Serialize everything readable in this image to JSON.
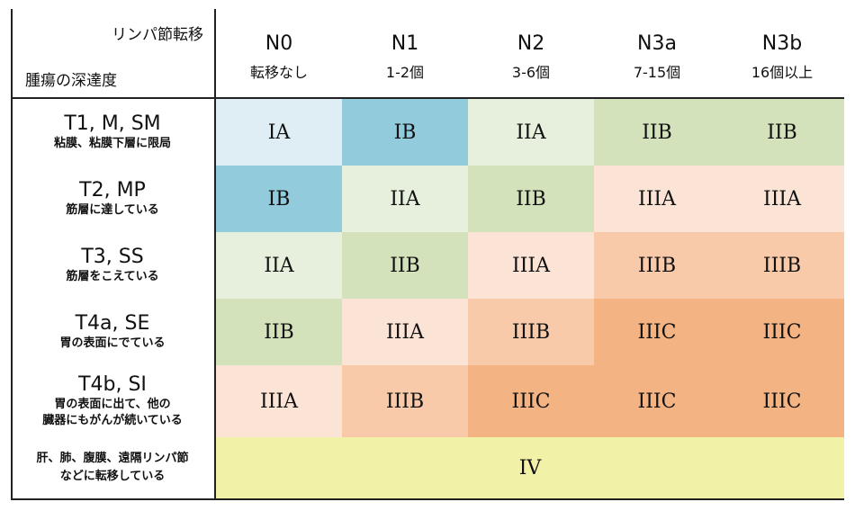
{
  "corner": {
    "lymph_label": "リンパ節転移",
    "depth_label": "腫瘍の深達度"
  },
  "columns": [
    {
      "code": "N0",
      "sub": "転移なし"
    },
    {
      "code": "N1",
      "sub": "1-2個"
    },
    {
      "code": "N2",
      "sub": "3-6個"
    },
    {
      "code": "N3a",
      "sub": "7-15個"
    },
    {
      "code": "N3b",
      "sub": "16個以上"
    }
  ],
  "rows": [
    {
      "code": "T1, M, SM",
      "sub": "粘膜、粘膜下層に限局",
      "cells": [
        "IA",
        "IB",
        "IIA",
        "IIB",
        "IIB"
      ]
    },
    {
      "code": "T2, MP",
      "sub": "筋層に達している",
      "cells": [
        "IB",
        "IIA",
        "IIB",
        "IIIA",
        "IIIA"
      ]
    },
    {
      "code": "T3, SS",
      "sub": "筋層をこえている",
      "cells": [
        "IIA",
        "IIB",
        "IIIA",
        "IIIB",
        "IIIB"
      ]
    },
    {
      "code": "T4a, SE",
      "sub": "胃の表面にでている",
      "cells": [
        "IIB",
        "IIIA",
        "IIIB",
        "IIIC",
        "IIIC"
      ]
    },
    {
      "code": "T4b, SI",
      "sub": "胃の表面に出て、他の",
      "sub2": "臓器にもがんが続いている",
      "cells": [
        "IIIA",
        "IIIB",
        "IIIC",
        "IIIC",
        "IIIC"
      ]
    }
  ],
  "metastasis_row": {
    "desc_line1": "肝、肺、腹膜、遠隔リンパ節",
    "desc_line2": "などに転移している",
    "stage": "IV"
  },
  "stage_colors": {
    "IA": "#dfeef4",
    "IB": "#92cbdc",
    "IIA": "#e7f0dc",
    "IIB": "#d3e2bb",
    "IIIA": "#fbe4d5",
    "IIIB": "#f8caa9",
    "IIIC": "#f4b383",
    "IV": "#f1f2a8"
  }
}
